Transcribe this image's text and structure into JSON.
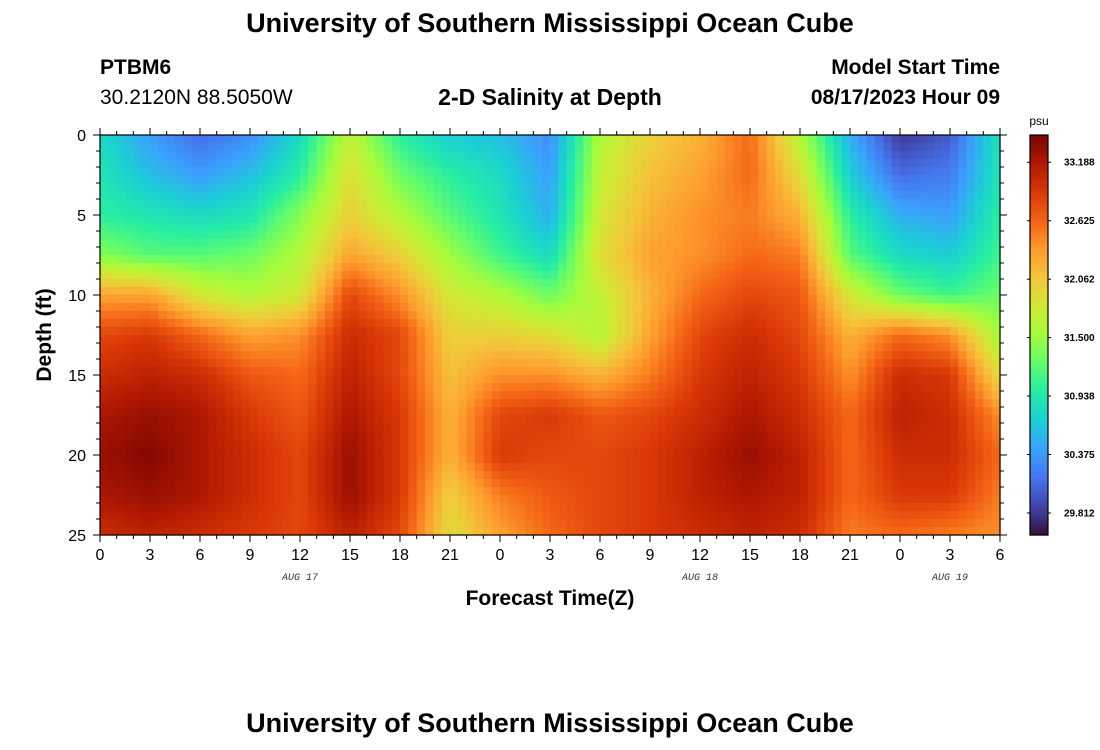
{
  "header": {
    "title": "University of Southern Mississippi Ocean Cube",
    "station_id": "PTBM6",
    "station_coords": "30.2120N  88.5050W",
    "subtitle": "2-D Salinity at Depth",
    "model_start_label": "Model Start Time",
    "model_start_value": "08/17/2023 Hour 09"
  },
  "footer": {
    "title": "University of Southern Mississippi Ocean Cube"
  },
  "chart_data": {
    "type": "heatmap",
    "title": "2-D Salinity at Depth",
    "xlabel": "Forecast Time(Z)",
    "ylabel": "Depth (ft)",
    "x_ticks": [
      "0",
      "3",
      "6",
      "9",
      "12",
      "15",
      "18",
      "21",
      "0",
      "3",
      "6",
      "9",
      "12",
      "15",
      "18",
      "21",
      "0",
      "3",
      "6"
    ],
    "x_range_hours": [
      0,
      54
    ],
    "day_labels": [
      {
        "label": "AUG 17",
        "hour": 12
      },
      {
        "label": "AUG 18",
        "hour": 36
      },
      {
        "label": "AUG 19",
        "hour": 51
      }
    ],
    "y_ticks": [
      0,
      5,
      10,
      15,
      20,
      25
    ],
    "ylim": [
      0,
      25
    ],
    "y_inverted": true,
    "colorbar": {
      "unit": "psu",
      "ticks": [
        "33.188",
        "32.625",
        "32.062",
        "31.500",
        "30.938",
        "30.375",
        "29.812"
      ],
      "range": [
        29.6,
        33.45
      ],
      "colors": [
        "#30123b",
        "#4145ab",
        "#4675ed",
        "#39a2fc",
        "#1bcfd4",
        "#24eca6",
        "#61fc6c",
        "#a4fc3b",
        "#d1e834",
        "#f3c63a",
        "#fe9b2d",
        "#f36315",
        "#d93806",
        "#b11901",
        "#7a0403"
      ]
    },
    "grid": {
      "time_hours": [
        0,
        3,
        6,
        9,
        12,
        15,
        18,
        21,
        24,
        27,
        30,
        33,
        36,
        39,
        42,
        45,
        48,
        51,
        54
      ],
      "depth_ft": [
        0,
        2.5,
        5,
        7.5,
        10,
        12.5,
        15,
        17.5,
        20,
        22.5,
        25
      ],
      "salinity_psu_by_depth": [
        [
          30.8,
          30.4,
          30.1,
          30.3,
          30.8,
          31.7,
          31.0,
          30.7,
          30.6,
          30.3,
          31.6,
          32.0,
          32.2,
          32.6,
          31.6,
          30.5,
          29.8,
          30.0,
          30.9
        ],
        [
          30.9,
          30.6,
          30.4,
          30.6,
          31.0,
          31.9,
          31.3,
          31.0,
          30.8,
          30.4,
          31.7,
          32.1,
          32.3,
          32.6,
          31.9,
          30.7,
          30.1,
          30.2,
          30.9
        ],
        [
          31.0,
          30.9,
          30.8,
          30.9,
          31.4,
          32.0,
          31.6,
          31.2,
          30.9,
          30.5,
          31.8,
          32.2,
          32.4,
          32.5,
          32.2,
          31.0,
          30.5,
          30.4,
          31.0
        ],
        [
          31.4,
          31.2,
          31.2,
          31.3,
          31.6,
          32.3,
          32.0,
          31.5,
          31.1,
          30.8,
          31.9,
          32.3,
          32.4,
          32.6,
          32.5,
          31.2,
          30.8,
          30.7,
          31.1
        ],
        [
          32.3,
          32.3,
          31.8,
          31.6,
          31.8,
          32.8,
          32.4,
          31.8,
          31.6,
          31.3,
          31.7,
          32.2,
          32.6,
          32.8,
          32.7,
          31.8,
          31.3,
          31.1,
          31.3
        ],
        [
          32.8,
          32.9,
          32.6,
          32.3,
          32.4,
          33.0,
          32.8,
          32.0,
          32.0,
          31.9,
          31.6,
          32.3,
          32.8,
          33.0,
          32.8,
          32.2,
          32.6,
          32.4,
          31.5
        ],
        [
          33.0,
          33.1,
          33.0,
          32.7,
          32.6,
          33.1,
          32.8,
          32.1,
          32.4,
          32.4,
          32.2,
          32.5,
          32.9,
          33.1,
          32.9,
          32.4,
          33.0,
          32.9,
          31.9
        ],
        [
          33.2,
          33.3,
          33.2,
          32.9,
          32.7,
          33.2,
          32.9,
          32.2,
          32.8,
          32.9,
          32.7,
          32.8,
          33.0,
          33.2,
          33.0,
          32.6,
          33.1,
          33.0,
          32.4
        ],
        [
          33.3,
          33.4,
          33.2,
          33.0,
          32.8,
          33.3,
          32.9,
          32.2,
          32.9,
          32.8,
          32.8,
          32.9,
          33.1,
          33.3,
          33.1,
          32.6,
          33.0,
          33.0,
          32.6
        ],
        [
          33.2,
          33.3,
          33.2,
          33.0,
          32.8,
          33.3,
          32.9,
          32.0,
          32.5,
          32.7,
          32.8,
          32.9,
          33.1,
          33.2,
          33.1,
          32.6,
          32.9,
          32.9,
          32.5
        ],
        [
          33.0,
          33.1,
          33.0,
          32.9,
          32.8,
          33.1,
          32.8,
          31.9,
          32.3,
          32.6,
          32.8,
          32.9,
          33.0,
          33.1,
          33.0,
          32.5,
          32.6,
          32.5,
          32.4
        ]
      ]
    }
  }
}
